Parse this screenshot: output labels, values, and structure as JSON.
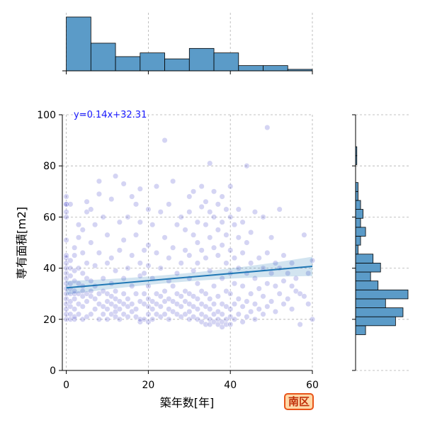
{
  "chart_data": {
    "type": "scatter",
    "xlabel": "築年数[年]",
    "ylabel": "専有面積[m2]",
    "xlim": [
      0,
      60
    ],
    "ylim": [
      0,
      100
    ],
    "xticks": [
      0,
      20,
      40,
      60
    ],
    "yticks": [
      0,
      20,
      40,
      60,
      80,
      100
    ],
    "grid": true,
    "regression": {
      "label": "y=0.14x+32.31",
      "slope": 0.14,
      "intercept": 32.31,
      "color": "#1f77b4"
    },
    "point_color": "#3a3ac8",
    "bar_color": "#5b9bc8",
    "marginal_x": {
      "bin_edges": [
        0,
        6,
        12,
        18,
        24,
        30,
        36,
        42,
        48,
        54,
        60
      ],
      "counts": [
        72,
        37,
        19,
        24,
        16,
        30,
        24,
        7,
        7,
        2
      ]
    },
    "marginal_y": {
      "bin_edges": [
        14,
        17.5,
        21,
        24.5,
        28,
        31.5,
        35,
        38.5,
        42,
        45.5,
        49,
        52.5,
        56,
        59.5,
        63,
        66.5,
        70,
        73.5,
        77,
        80.5,
        84,
        87.5,
        91,
        94.5
      ],
      "counts": [
        4,
        16,
        19,
        12,
        21,
        9,
        6,
        10,
        7,
        1,
        2,
        4,
        2,
        3,
        2,
        1,
        1,
        0,
        0,
        0.5,
        0.5,
        0,
        0
      ]
    },
    "points": [
      [
        0,
        20
      ],
      [
        0,
        22
      ],
      [
        0,
        24
      ],
      [
        0,
        26
      ],
      [
        0,
        28
      ],
      [
        0,
        30
      ],
      [
        0,
        32
      ],
      [
        0,
        34
      ],
      [
        0,
        36
      ],
      [
        0,
        38
      ],
      [
        0,
        40
      ],
      [
        0,
        42
      ],
      [
        0,
        44
      ],
      [
        0,
        45
      ],
      [
        0,
        60
      ],
      [
        0,
        62
      ],
      [
        0,
        65
      ],
      [
        0,
        65
      ],
      [
        0,
        68
      ],
      [
        0,
        51
      ],
      [
        1,
        20
      ],
      [
        1,
        22
      ],
      [
        1,
        25
      ],
      [
        1,
        27
      ],
      [
        1,
        30
      ],
      [
        1,
        32
      ],
      [
        1,
        34
      ],
      [
        1,
        37
      ],
      [
        1,
        40
      ],
      [
        1,
        43
      ],
      [
        1,
        65
      ],
      [
        2,
        20
      ],
      [
        2,
        21
      ],
      [
        2,
        24
      ],
      [
        2,
        28
      ],
      [
        2,
        30
      ],
      [
        2,
        31
      ],
      [
        2,
        35
      ],
      [
        2,
        39
      ],
      [
        2,
        45
      ],
      [
        2,
        48
      ],
      [
        3,
        22
      ],
      [
        3,
        26
      ],
      [
        3,
        30
      ],
      [
        3,
        34
      ],
      [
        3,
        40
      ],
      [
        3,
        52
      ],
      [
        3,
        57
      ],
      [
        4,
        20
      ],
      [
        4,
        25
      ],
      [
        4,
        29
      ],
      [
        4,
        31
      ],
      [
        4,
        33
      ],
      [
        4,
        38
      ],
      [
        4,
        46
      ],
      [
        4,
        55
      ],
      [
        5,
        21
      ],
      [
        5,
        27
      ],
      [
        5,
        30
      ],
      [
        5,
        36
      ],
      [
        5,
        42
      ],
      [
        5,
        62
      ],
      [
        5,
        66
      ],
      [
        6,
        22
      ],
      [
        6,
        29
      ],
      [
        6,
        31
      ],
      [
        6,
        35
      ],
      [
        6,
        50
      ],
      [
        6,
        63
      ],
      [
        7,
        24
      ],
      [
        7,
        28
      ],
      [
        7,
        33
      ],
      [
        7,
        41
      ],
      [
        7,
        57
      ],
      [
        8,
        20
      ],
      [
        8,
        26
      ],
      [
        8,
        30
      ],
      [
        8,
        46
      ],
      [
        8,
        74
      ],
      [
        8,
        69
      ],
      [
        9,
        22
      ],
      [
        9,
        25
      ],
      [
        9,
        31
      ],
      [
        9,
        36
      ],
      [
        9,
        60
      ],
      [
        10,
        20
      ],
      [
        10,
        24
      ],
      [
        10,
        27
      ],
      [
        10,
        30
      ],
      [
        10,
        42
      ],
      [
        10,
        53
      ],
      [
        11,
        22
      ],
      [
        11,
        26
      ],
      [
        11,
        29
      ],
      [
        11,
        34
      ],
      [
        11,
        44
      ],
      [
        11,
        67
      ],
      [
        12,
        21
      ],
      [
        12,
        23
      ],
      [
        12,
        25
      ],
      [
        12,
        28
      ],
      [
        12,
        31
      ],
      [
        12,
        39
      ],
      [
        12,
        76
      ],
      [
        13,
        20
      ],
      [
        13,
        24
      ],
      [
        13,
        27
      ],
      [
        13,
        47
      ],
      [
        13,
        58
      ],
      [
        14,
        22
      ],
      [
        14,
        26
      ],
      [
        14,
        30
      ],
      [
        14,
        36
      ],
      [
        14,
        51
      ],
      [
        14,
        73
      ],
      [
        15,
        21
      ],
      [
        15,
        25
      ],
      [
        15,
        28
      ],
      [
        15,
        40
      ],
      [
        15,
        60
      ],
      [
        16,
        23
      ],
      [
        16,
        26
      ],
      [
        16,
        33
      ],
      [
        16,
        45
      ],
      [
        16,
        68
      ],
      [
        17,
        21
      ],
      [
        17,
        24
      ],
      [
        17,
        30
      ],
      [
        17,
        53
      ],
      [
        17,
        65
      ],
      [
        18,
        19
      ],
      [
        18,
        20
      ],
      [
        18,
        27
      ],
      [
        18,
        37
      ],
      [
        18,
        42
      ],
      [
        18,
        58
      ],
      [
        18,
        71
      ],
      [
        19,
        20
      ],
      [
        19,
        26
      ],
      [
        19,
        30
      ],
      [
        19,
        38
      ],
      [
        19,
        47
      ],
      [
        20,
        19
      ],
      [
        20,
        22
      ],
      [
        20,
        25
      ],
      [
        20,
        28
      ],
      [
        20,
        33
      ],
      [
        20,
        41
      ],
      [
        20,
        49
      ],
      [
        20,
        63
      ],
      [
        21,
        20
      ],
      [
        21,
        24
      ],
      [
        21,
        27
      ],
      [
        21,
        36
      ],
      [
        21,
        57
      ],
      [
        22,
        22
      ],
      [
        22,
        26
      ],
      [
        22,
        30
      ],
      [
        22,
        46
      ],
      [
        22,
        72
      ],
      [
        23,
        21
      ],
      [
        23,
        25
      ],
      [
        23,
        29
      ],
      [
        23,
        40
      ],
      [
        23,
        62
      ],
      [
        24,
        22
      ],
      [
        24,
        27
      ],
      [
        24,
        31
      ],
      [
        24,
        52
      ],
      [
        24,
        90
      ],
      [
        25,
        20
      ],
      [
        25,
        24
      ],
      [
        25,
        28
      ],
      [
        25,
        35
      ],
      [
        25,
        44
      ],
      [
        25,
        65
      ],
      [
        26,
        23
      ],
      [
        26,
        27
      ],
      [
        26,
        33
      ],
      [
        26,
        48
      ],
      [
        26,
        74
      ],
      [
        27,
        22
      ],
      [
        27,
        26
      ],
      [
        27,
        30
      ],
      [
        27,
        38
      ],
      [
        27,
        57
      ],
      [
        28,
        21
      ],
      [
        28,
        25
      ],
      [
        28,
        29
      ],
      [
        28,
        42
      ],
      [
        28,
        60
      ],
      [
        29,
        22
      ],
      [
        29,
        27
      ],
      [
        29,
        31
      ],
      [
        29,
        47
      ],
      [
        29,
        55
      ],
      [
        30,
        20
      ],
      [
        30,
        23
      ],
      [
        30,
        26
      ],
      [
        30,
        30
      ],
      [
        30,
        36
      ],
      [
        30,
        45
      ],
      [
        30,
        62
      ],
      [
        30,
        68
      ],
      [
        31,
        21
      ],
      [
        31,
        25
      ],
      [
        31,
        29
      ],
      [
        31,
        39
      ],
      [
        31,
        53
      ],
      [
        31,
        70
      ],
      [
        32,
        20
      ],
      [
        32,
        24
      ],
      [
        32,
        28
      ],
      [
        32,
        34
      ],
      [
        32,
        42
      ],
      [
        32,
        50
      ],
      [
        32,
        58
      ],
      [
        33,
        19
      ],
      [
        33,
        22
      ],
      [
        33,
        26
      ],
      [
        33,
        31
      ],
      [
        33,
        47
      ],
      [
        33,
        64
      ],
      [
        33,
        72
      ],
      [
        34,
        18
      ],
      [
        34,
        21
      ],
      [
        34,
        25
      ],
      [
        34,
        30
      ],
      [
        34,
        44
      ],
      [
        34,
        57
      ],
      [
        34,
        66
      ],
      [
        35,
        18
      ],
      [
        35,
        20
      ],
      [
        35,
        24
      ],
      [
        35,
        28
      ],
      [
        35,
        39
      ],
      [
        35,
        52
      ],
      [
        35,
        62
      ],
      [
        35,
        81
      ],
      [
        36,
        19
      ],
      [
        36,
        22
      ],
      [
        36,
        26
      ],
      [
        36,
        33
      ],
      [
        36,
        48
      ],
      [
        36,
        60
      ],
      [
        36,
        70
      ],
      [
        37,
        18
      ],
      [
        37,
        20
      ],
      [
        37,
        23
      ],
      [
        37,
        29
      ],
      [
        37,
        45
      ],
      [
        37,
        55
      ],
      [
        37,
        65
      ],
      [
        38,
        17
      ],
      [
        38,
        19
      ],
      [
        38,
        22
      ],
      [
        38,
        26
      ],
      [
        38,
        36
      ],
      [
        38,
        49
      ],
      [
        38,
        58
      ],
      [
        38,
        68
      ],
      [
        39,
        18
      ],
      [
        39,
        20
      ],
      [
        39,
        25
      ],
      [
        39,
        31
      ],
      [
        39,
        42
      ],
      [
        39,
        53
      ],
      [
        39,
        63
      ],
      [
        40,
        18
      ],
      [
        40,
        21
      ],
      [
        40,
        24
      ],
      [
        40,
        30
      ],
      [
        40,
        38
      ],
      [
        40,
        47
      ],
      [
        40,
        60
      ],
      [
        40,
        72
      ],
      [
        41,
        20
      ],
      [
        41,
        26
      ],
      [
        41,
        34
      ],
      [
        41,
        44
      ],
      [
        41,
        57
      ],
      [
        42,
        22
      ],
      [
        42,
        28
      ],
      [
        42,
        40
      ],
      [
        42,
        52
      ],
      [
        42,
        63
      ],
      [
        43,
        19
      ],
      [
        43,
        25
      ],
      [
        43,
        33
      ],
      [
        43,
        46
      ],
      [
        43,
        58
      ],
      [
        44,
        21
      ],
      [
        44,
        27
      ],
      [
        44,
        38
      ],
      [
        44,
        50
      ],
      [
        44,
        80
      ],
      [
        45,
        23
      ],
      [
        45,
        30
      ],
      [
        45,
        42
      ],
      [
        45,
        54
      ],
      [
        46,
        20
      ],
      [
        46,
        26
      ],
      [
        46,
        36
      ],
      [
        46,
        62
      ],
      [
        47,
        24
      ],
      [
        47,
        32
      ],
      [
        47,
        44
      ],
      [
        48,
        22
      ],
      [
        48,
        29
      ],
      [
        48,
        40
      ],
      [
        48,
        60
      ],
      [
        49,
        25
      ],
      [
        49,
        34
      ],
      [
        49,
        46
      ],
      [
        49,
        95
      ],
      [
        50,
        27
      ],
      [
        50,
        38
      ],
      [
        50,
        52
      ],
      [
        51,
        23
      ],
      [
        51,
        33
      ],
      [
        51,
        42
      ],
      [
        52,
        30
      ],
      [
        52,
        40
      ],
      [
        52,
        63
      ],
      [
        53,
        26
      ],
      [
        53,
        35
      ],
      [
        53,
        45
      ],
      [
        54,
        28
      ],
      [
        54,
        38
      ],
      [
        55,
        24
      ],
      [
        55,
        33
      ],
      [
        55,
        42
      ],
      [
        56,
        31
      ],
      [
        56,
        36
      ],
      [
        57,
        18
      ],
      [
        57,
        30
      ],
      [
        58,
        29
      ],
      [
        58,
        53
      ],
      [
        59,
        26
      ],
      [
        59,
        38
      ],
      [
        60,
        20
      ],
      [
        60,
        43
      ]
    ]
  },
  "region_label": "南区"
}
